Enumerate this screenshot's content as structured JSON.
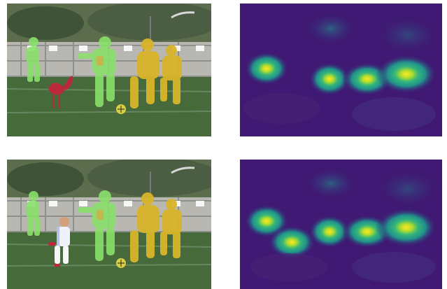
{
  "figure": {
    "rows": [
      {
        "photo_label": "soccer-scene-with-flamingo-segmentation",
        "heatmap_label": "attention-heatmap-row-1"
      },
      {
        "photo_label": "soccer-scene-with-child-segmentation",
        "heatmap_label": "attention-heatmap-row-2"
      }
    ],
    "colors": {
      "background": "#ffffff",
      "mask_green": "#89e06a",
      "mask_yellow": "#d9b42a",
      "mask_red": "#c0263b",
      "heat_low": "#3b0f70",
      "heat_mid": "#21918c",
      "heat_high": "#fde725"
    }
  }
}
